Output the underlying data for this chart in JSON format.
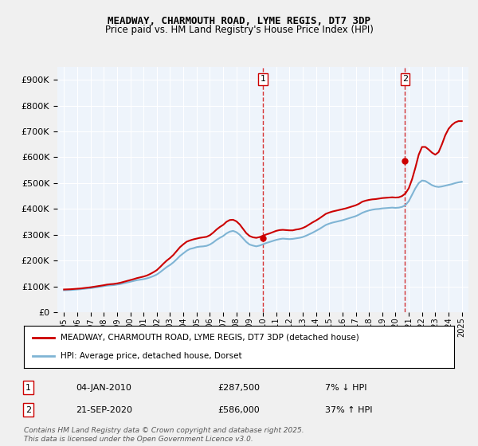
{
  "title1": "MEADWAY, CHARMOUTH ROAD, LYME REGIS, DT7 3DP",
  "title2": "Price paid vs. HM Land Registry's House Price Index (HPI)",
  "bg_color": "#e8f0f8",
  "plot_bg": "#eef4fb",
  "grid_color": "#ffffff",
  "red_color": "#cc0000",
  "blue_color": "#7fb4d4",
  "annotation_color": "#cc0000",
  "xmin": 1994.5,
  "xmax": 2025.5,
  "ymin": 0,
  "ymax": 950000,
  "yticks": [
    0,
    100000,
    200000,
    300000,
    400000,
    500000,
    600000,
    700000,
    800000,
    900000
  ],
  "ytick_labels": [
    "£0",
    "£100K",
    "£200K",
    "£300K",
    "£400K",
    "£500K",
    "£600K",
    "£700K",
    "£800K",
    "£900K"
  ],
  "xticks": [
    1995,
    1996,
    1997,
    1998,
    1999,
    2000,
    2001,
    2002,
    2003,
    2004,
    2005,
    2006,
    2007,
    2008,
    2009,
    2010,
    2011,
    2012,
    2013,
    2014,
    2015,
    2016,
    2017,
    2018,
    2019,
    2020,
    2021,
    2022,
    2023,
    2024,
    2025
  ],
  "sale1_x": 2010.01,
  "sale1_y": 287500,
  "sale2_x": 2020.72,
  "sale2_y": 586000,
  "hpi_x": [
    1995,
    1995.25,
    1995.5,
    1995.75,
    1996,
    1996.25,
    1996.5,
    1996.75,
    1997,
    1997.25,
    1997.5,
    1997.75,
    1998,
    1998.25,
    1998.5,
    1998.75,
    1999,
    1999.25,
    1999.5,
    1999.75,
    2000,
    2000.25,
    2000.5,
    2000.75,
    2001,
    2001.25,
    2001.5,
    2001.75,
    2002,
    2002.25,
    2002.5,
    2002.75,
    2003,
    2003.25,
    2003.5,
    2003.75,
    2004,
    2004.25,
    2004.5,
    2004.75,
    2005,
    2005.25,
    2005.5,
    2005.75,
    2006,
    2006.25,
    2006.5,
    2006.75,
    2007,
    2007.25,
    2007.5,
    2007.75,
    2008,
    2008.25,
    2008.5,
    2008.75,
    2009,
    2009.25,
    2009.5,
    2009.75,
    2010,
    2010.25,
    2010.5,
    2010.75,
    2011,
    2011.25,
    2011.5,
    2011.75,
    2012,
    2012.25,
    2012.5,
    2012.75,
    2013,
    2013.25,
    2013.5,
    2013.75,
    2014,
    2014.25,
    2014.5,
    2014.75,
    2015,
    2015.25,
    2015.5,
    2015.75,
    2016,
    2016.25,
    2016.5,
    2016.75,
    2017,
    2017.25,
    2017.5,
    2017.75,
    2018,
    2018.25,
    2018.5,
    2018.75,
    2019,
    2019.25,
    2019.5,
    2019.75,
    2020,
    2020.25,
    2020.5,
    2020.75,
    2021,
    2021.25,
    2021.5,
    2021.75,
    2022,
    2022.25,
    2022.5,
    2022.75,
    2023,
    2023.25,
    2023.5,
    2023.75,
    2024,
    2024.25,
    2024.5,
    2024.75,
    2025
  ],
  "hpi_y": [
    85000,
    85500,
    86000,
    87000,
    88000,
    89000,
    90500,
    92000,
    93000,
    95000,
    97000,
    99000,
    101000,
    103000,
    104000,
    105000,
    107000,
    109000,
    112000,
    115000,
    118000,
    121000,
    124000,
    126000,
    128000,
    131000,
    135000,
    140000,
    146000,
    155000,
    165000,
    175000,
    183000,
    193000,
    205000,
    218000,
    228000,
    238000,
    245000,
    248000,
    252000,
    254000,
    255000,
    257000,
    262000,
    270000,
    280000,
    288000,
    295000,
    305000,
    312000,
    315000,
    310000,
    300000,
    286000,
    272000,
    262000,
    258000,
    255000,
    258000,
    263000,
    268000,
    272000,
    276000,
    280000,
    283000,
    285000,
    284000,
    283000,
    284000,
    286000,
    288000,
    291000,
    296000,
    302000,
    308000,
    315000,
    322000,
    330000,
    338000,
    343000,
    347000,
    350000,
    353000,
    356000,
    360000,
    364000,
    368000,
    372000,
    378000,
    385000,
    390000,
    394000,
    397000,
    399000,
    400000,
    402000,
    403000,
    404000,
    405000,
    404000,
    405000,
    408000,
    415000,
    430000,
    455000,
    480000,
    500000,
    510000,
    508000,
    500000,
    492000,
    487000,
    485000,
    487000,
    490000,
    493000,
    496000,
    500000,
    503000,
    505000
  ],
  "red_x": [
    1995,
    1995.25,
    1995.5,
    1995.75,
    1996,
    1996.25,
    1996.5,
    1996.75,
    1997,
    1997.25,
    1997.5,
    1997.75,
    1998,
    1998.25,
    1998.5,
    1998.75,
    1999,
    1999.25,
    1999.5,
    1999.75,
    2000,
    2000.25,
    2000.5,
    2000.75,
    2001,
    2001.25,
    2001.5,
    2001.75,
    2002,
    2002.25,
    2002.5,
    2002.75,
    2003,
    2003.25,
    2003.5,
    2003.75,
    2004,
    2004.25,
    2004.5,
    2004.75,
    2005,
    2005.25,
    2005.5,
    2005.75,
    2006,
    2006.25,
    2006.5,
    2006.75,
    2007,
    2007.25,
    2007.5,
    2007.75,
    2008,
    2008.25,
    2008.5,
    2008.75,
    2009,
    2009.25,
    2009.5,
    2009.75,
    2010,
    2010.25,
    2010.5,
    2010.75,
    2011,
    2011.25,
    2011.5,
    2011.75,
    2012,
    2012.25,
    2012.5,
    2012.75,
    2013,
    2013.25,
    2013.5,
    2013.75,
    2014,
    2014.25,
    2014.5,
    2014.75,
    2015,
    2015.25,
    2015.5,
    2015.75,
    2016,
    2016.25,
    2016.5,
    2016.75,
    2017,
    2017.25,
    2017.5,
    2017.75,
    2018,
    2018.25,
    2018.5,
    2018.75,
    2019,
    2019.25,
    2019.5,
    2019.75,
    2020,
    2020.25,
    2020.5,
    2020.75,
    2021,
    2021.25,
    2021.5,
    2021.75,
    2022,
    2022.25,
    2022.5,
    2022.75,
    2023,
    2023.25,
    2023.5,
    2023.75,
    2024,
    2024.25,
    2024.5,
    2024.75,
    2025
  ],
  "red_y": [
    88000,
    88500,
    89000,
    90000,
    91000,
    92000,
    93500,
    95000,
    96500,
    98500,
    100500,
    102500,
    104500,
    107000,
    108500,
    109500,
    111500,
    114000,
    117500,
    121000,
    124500,
    128000,
    132000,
    135000,
    138000,
    142000,
    148000,
    155000,
    163000,
    175000,
    188000,
    200000,
    210000,
    222000,
    237000,
    252000,
    263000,
    273000,
    278000,
    282000,
    285000,
    288000,
    290000,
    292000,
    298000,
    308000,
    320000,
    330000,
    338000,
    350000,
    357000,
    358000,
    352000,
    340000,
    323000,
    306000,
    295000,
    290000,
    288000,
    291000,
    296000,
    301000,
    305000,
    310000,
    315000,
    318000,
    319000,
    318000,
    317000,
    317000,
    320000,
    322000,
    326000,
    332000,
    340000,
    348000,
    355000,
    363000,
    372000,
    381000,
    386000,
    390000,
    393000,
    396000,
    399000,
    402000,
    406000,
    410000,
    414000,
    420000,
    428000,
    432000,
    435000,
    437000,
    438000,
    440000,
    442000,
    443000,
    444000,
    445000,
    444000,
    445000,
    450000,
    460000,
    480000,
    515000,
    560000,
    610000,
    640000,
    640000,
    630000,
    618000,
    610000,
    620000,
    650000,
    685000,
    710000,
    725000,
    735000,
    740000,
    740000
  ],
  "legend1": "MEADWAY, CHARMOUTH ROAD, LYME REGIS, DT7 3DP (detached house)",
  "legend2": "HPI: Average price, detached house, Dorset",
  "annot1_label": "1",
  "annot1_date": "04-JAN-2010",
  "annot1_price": "£287,500",
  "annot1_hpi": "7% ↓ HPI",
  "annot2_label": "2",
  "annot2_date": "21-SEP-2020",
  "annot2_price": "£586,000",
  "annot2_hpi": "37% ↑ HPI",
  "footer": "Contains HM Land Registry data © Crown copyright and database right 2025.\nThis data is licensed under the Open Government Licence v3.0."
}
